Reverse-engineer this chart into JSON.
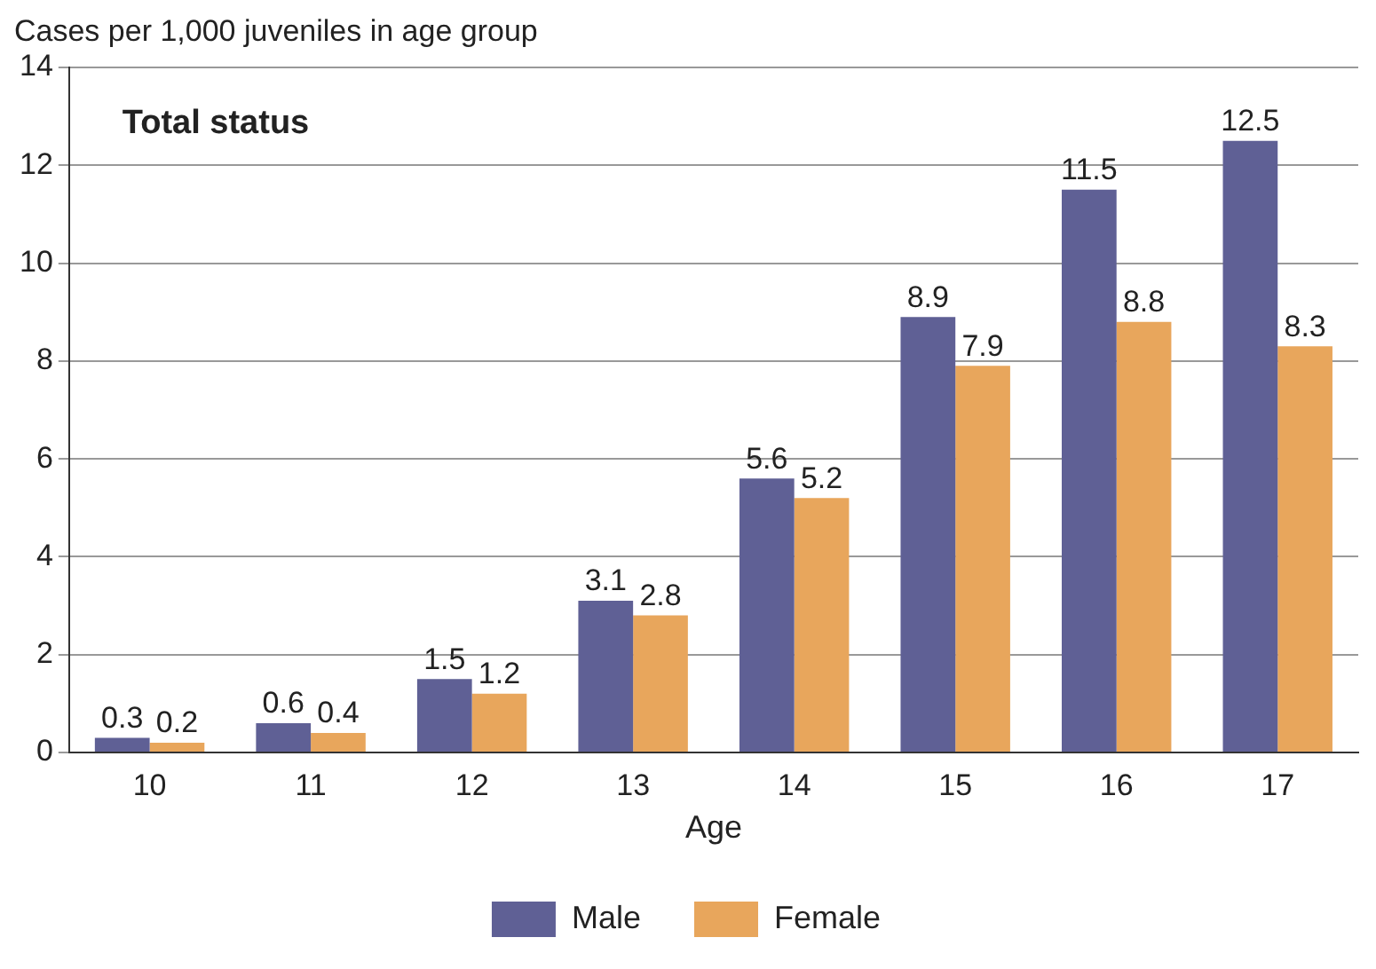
{
  "chart_data": {
    "type": "bar",
    "ylabel": "Cases per 1,000 juveniles in age group",
    "xlabel": "Age",
    "annotations": [
      "Total status"
    ],
    "categories": [
      "10",
      "11",
      "12",
      "13",
      "14",
      "15",
      "16",
      "17"
    ],
    "series": [
      {
        "name": "Male",
        "color": "#5f6095",
        "values": [
          0.3,
          0.6,
          1.5,
          3.1,
          5.6,
          8.9,
          11.5,
          12.5
        ]
      },
      {
        "name": "Female",
        "color": "#e8a65c",
        "values": [
          0.2,
          0.4,
          1.2,
          2.8,
          5.2,
          7.9,
          8.8,
          8.3
        ]
      }
    ],
    "ylim": [
      0,
      14
    ],
    "yticks": [
      0,
      2,
      4,
      6,
      8,
      10,
      12,
      14
    ],
    "grid": "y",
    "legend": "bottom",
    "data_labels": true
  }
}
